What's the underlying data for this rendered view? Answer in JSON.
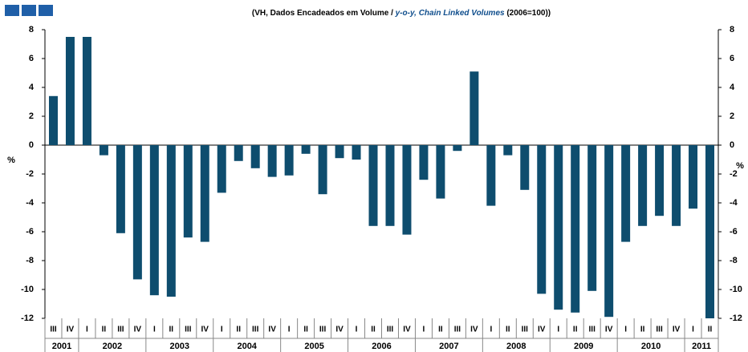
{
  "chart_data": {
    "type": "bar",
    "subtitle": [
      "(VH, Dados Encadeados em Volume / ",
      "y-o-y, Chain Linked Volumes",
      " (2006=100))"
    ],
    "categories": [
      "III",
      "IV",
      "I",
      "II",
      "III",
      "IV",
      "I",
      "II",
      "III",
      "IV",
      "I",
      "II",
      "III",
      "IV",
      "I",
      "II",
      "III",
      "IV",
      "I",
      "II",
      "III",
      "IV",
      "I",
      "II",
      "III",
      "IV",
      "I",
      "II",
      "III",
      "IV",
      "I",
      "II",
      "III",
      "IV",
      "I",
      "II",
      "III",
      "IV",
      "I",
      "II"
    ],
    "years": [
      "2001",
      "2002",
      "2003",
      "2004",
      "2005",
      "2006",
      "2007",
      "2008",
      "2009",
      "2010",
      "2011"
    ],
    "values": [
      3.4,
      7.5,
      7.5,
      -0.7,
      -6.1,
      -9.3,
      -10.4,
      -10.5,
      -6.4,
      -6.7,
      -3.3,
      -1.1,
      -1.6,
      -2.2,
      -2.1,
      -0.6,
      -3.4,
      -0.9,
      -1.0,
      -5.6,
      -5.6,
      -6.2,
      -2.4,
      -3.7,
      -0.4,
      5.1,
      -4.2,
      -0.7,
      -3.1,
      -10.3,
      -11.4,
      -11.6,
      -10.1,
      -11.9,
      -6.7,
      -5.6,
      -4.9,
      -5.6,
      -4.4,
      -12.0
    ],
    "color": "#0e4d6e",
    "ylabel": "%",
    "ylim": [
      -12,
      8
    ],
    "yticks": [
      -12,
      -10,
      -8,
      -6,
      -4,
      -2,
      0,
      2,
      4,
      6,
      8
    ]
  }
}
